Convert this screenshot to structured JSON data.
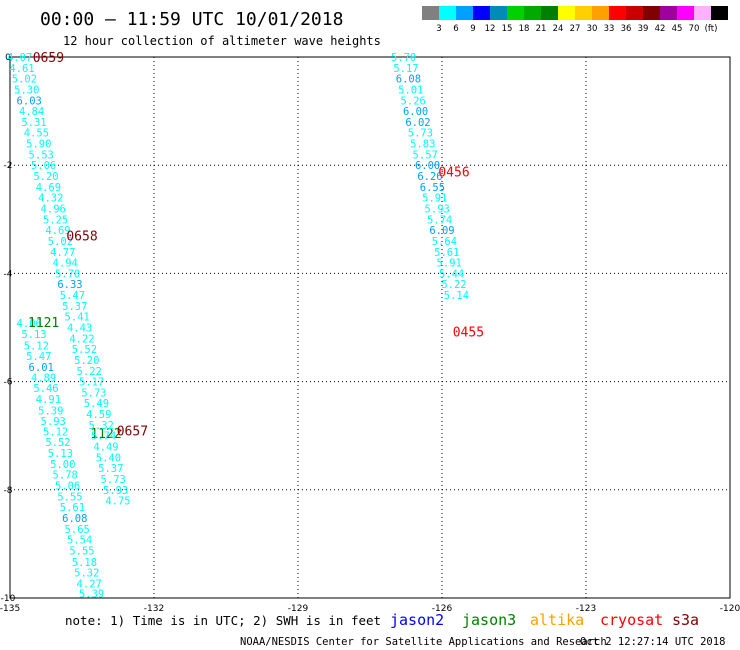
{
  "header": {
    "title": "00:00 – 11:59 UTC 10/01/2018",
    "subtitle": "12 hour collection of altimeter wave heights"
  },
  "legend": {
    "colors": [
      "#808080",
      "#00ffff",
      "#00a0ff",
      "#0000ff",
      "#008cb4",
      "#00d200",
      "#00aa00",
      "#008000",
      "#ffff00",
      "#ffd000",
      "#ffa000",
      "#ff0000",
      "#c80000",
      "#800000",
      "#a000a0",
      "#ff00ff",
      "#ffb0ff",
      "#000000"
    ],
    "labels": [
      "3",
      "6",
      "9",
      "12",
      "15",
      "18",
      "21",
      "24",
      "27",
      "30",
      "33",
      "36",
      "39",
      "42",
      "45",
      "70",
      "(ft)"
    ]
  },
  "chart_data": {
    "type": "scatter",
    "xlim": [
      -135,
      -120
    ],
    "ylim": [
      -10,
      0
    ],
    "x_ticks": [
      "-135",
      "-132",
      "-129",
      "-126",
      "-123",
      "-120"
    ],
    "y_ticks": [
      "0",
      "-2",
      "-4",
      "-6",
      "-8",
      "-10"
    ],
    "grid": true,
    "series": [
      {
        "name": "jason2",
        "color": "#0000ff",
        "points": []
      },
      {
        "name": "jason3",
        "color": "#008000",
        "times": [
          {
            "label": "1121",
            "x": -134.3,
            "y": -4.9
          },
          {
            "label": "1122",
            "x": -133.0,
            "y": -6.95
          }
        ],
        "points": [
          {
            "x": -134.6,
            "y": -4.92,
            "v": "4.06",
            "c": "#00ffff"
          },
          {
            "x": -134.5,
            "y": -5.12,
            "v": "5.13",
            "c": "#00ffff"
          },
          {
            "x": -134.45,
            "y": -5.33,
            "v": "5.12",
            "c": "#00ffff"
          },
          {
            "x": -134.4,
            "y": -5.53,
            "v": "5.47",
            "c": "#00ffff"
          },
          {
            "x": -134.35,
            "y": -5.73,
            "v": "6.01",
            "c": "#00a0ff"
          },
          {
            "x": -134.3,
            "y": -5.92,
            "v": "4.89",
            "c": "#00ffff"
          },
          {
            "x": -134.25,
            "y": -6.12,
            "v": "5.46",
            "c": "#00ffff"
          },
          {
            "x": -134.2,
            "y": -6.32,
            "v": "4.91",
            "c": "#00ffff"
          },
          {
            "x": -134.15,
            "y": -6.53,
            "v": "5.39",
            "c": "#00ffff"
          },
          {
            "x": -134.1,
            "y": -6.73,
            "v": "5.93",
            "c": "#00ffff"
          },
          {
            "x": -134.05,
            "y": -6.92,
            "v": "5.12",
            "c": "#00ffff"
          },
          {
            "x": -134.0,
            "y": -7.12,
            "v": "5.52",
            "c": "#00ffff"
          },
          {
            "x": -133.95,
            "y": -7.32,
            "v": "5.13",
            "c": "#00ffff"
          },
          {
            "x": -133.9,
            "y": -7.52,
            "v": "5.00",
            "c": "#00ffff"
          },
          {
            "x": -133.85,
            "y": -7.72,
            "v": "5.78",
            "c": "#00ffff"
          },
          {
            "x": -133.8,
            "y": -7.92,
            "v": "5.06",
            "c": "#00ffff"
          },
          {
            "x": -133.75,
            "y": -8.12,
            "v": "5.55",
            "c": "#00ffff"
          },
          {
            "x": -133.7,
            "y": -8.32,
            "v": "5.61",
            "c": "#00ffff"
          },
          {
            "x": -133.65,
            "y": -8.52,
            "v": "6.08",
            "c": "#00a0ff"
          },
          {
            "x": -133.6,
            "y": -8.72,
            "v": "5.65",
            "c": "#00ffff"
          },
          {
            "x": -133.55,
            "y": -8.92,
            "v": "5.54",
            "c": "#00ffff"
          },
          {
            "x": -133.5,
            "y": -9.12,
            "v": "5.55",
            "c": "#00ffff"
          },
          {
            "x": -133.45,
            "y": -9.33,
            "v": "5.18",
            "c": "#00ffff"
          },
          {
            "x": -133.4,
            "y": -9.53,
            "v": "5.32",
            "c": "#00ffff"
          },
          {
            "x": -133.35,
            "y": -9.73,
            "v": "4.27",
            "c": "#00ffff"
          },
          {
            "x": -133.3,
            "y": -9.92,
            "v": "5.39",
            "c": "#00ffff"
          }
        ]
      },
      {
        "name": "altika",
        "color": "#ffa000",
        "points": []
      },
      {
        "name": "cryosat",
        "color": "#ff0000",
        "times": [
          {
            "label": "0456",
            "x": -125.75,
            "y": -2.12
          },
          {
            "label": "0455",
            "x": -125.45,
            "y": -5.07
          }
        ],
        "points": [
          {
            "x": -126.8,
            "y": 0.0,
            "v": "5.70",
            "c": "#00ffff"
          },
          {
            "x": -126.75,
            "y": -0.2,
            "v": "5.17",
            "c": "#00ffff"
          },
          {
            "x": -126.7,
            "y": -0.4,
            "v": "6.08",
            "c": "#00a0ff"
          },
          {
            "x": -126.65,
            "y": -0.6,
            "v": "5.01",
            "c": "#00ffff"
          },
          {
            "x": -126.6,
            "y": -0.8,
            "v": "5.26",
            "c": "#00ffff"
          },
          {
            "x": -126.55,
            "y": -1.0,
            "v": "6.00",
            "c": "#00a0ff"
          },
          {
            "x": -126.5,
            "y": -1.2,
            "v": "6.02",
            "c": "#00a0ff"
          },
          {
            "x": -126.45,
            "y": -1.4,
            "v": "5.73",
            "c": "#00ffff"
          },
          {
            "x": -126.4,
            "y": -1.6,
            "v": "5.83",
            "c": "#00ffff"
          },
          {
            "x": -126.35,
            "y": -1.8,
            "v": "5.57",
            "c": "#00ffff"
          },
          {
            "x": -126.3,
            "y": -2.0,
            "v": "6.00",
            "c": "#00a0ff"
          },
          {
            "x": -126.25,
            "y": -2.2,
            "v": "6.26",
            "c": "#00a0ff"
          },
          {
            "x": -126.2,
            "y": -2.4,
            "v": "6.55",
            "c": "#00a0ff"
          },
          {
            "x": -126.15,
            "y": -2.6,
            "v": "5.91",
            "c": "#00ffff"
          },
          {
            "x": -126.1,
            "y": -2.8,
            "v": "5.93",
            "c": "#00ffff"
          },
          {
            "x": -126.05,
            "y": -3.0,
            "v": "5.74",
            "c": "#00ffff"
          },
          {
            "x": -126.0,
            "y": -3.2,
            "v": "6.09",
            "c": "#00a0ff"
          },
          {
            "x": -125.95,
            "y": -3.4,
            "v": "5.64",
            "c": "#00ffff"
          },
          {
            "x": -125.9,
            "y": -3.6,
            "v": "5.61",
            "c": "#00ffff"
          },
          {
            "x": -125.85,
            "y": -3.8,
            "v": "5.91",
            "c": "#00ffff"
          },
          {
            "x": -125.8,
            "y": -4.0,
            "v": "5.44",
            "c": "#00ffff"
          },
          {
            "x": -125.75,
            "y": -4.2,
            "v": "5.22",
            "c": "#00ffff"
          },
          {
            "x": -125.7,
            "y": -4.4,
            "v": "5.14",
            "c": "#00ffff"
          }
        ]
      },
      {
        "name": "s3a",
        "color": "#800000",
        "times": [
          {
            "label": "0659",
            "x": -134.2,
            "y": 0.0
          },
          {
            "label": "0658",
            "x": -133.5,
            "y": -3.3
          },
          {
            "label": "0657",
            "x": -132.45,
            "y": -6.9
          }
        ],
        "points": [
          {
            "x": -134.8,
            "y": 0.0,
            "v": "4.07",
            "c": "#00ffff"
          },
          {
            "x": -134.75,
            "y": -0.2,
            "v": "4.61",
            "c": "#00ffff"
          },
          {
            "x": -134.7,
            "y": -0.4,
            "v": "5.02",
            "c": "#00ffff"
          },
          {
            "x": -134.65,
            "y": -0.6,
            "v": "5.30",
            "c": "#00ffff"
          },
          {
            "x": -134.6,
            "y": -0.8,
            "v": "6.03",
            "c": "#00a0ff"
          },
          {
            "x": -134.55,
            "y": -1.0,
            "v": "4.84",
            "c": "#00ffff"
          },
          {
            "x": -134.5,
            "y": -1.2,
            "v": "5.31",
            "c": "#00ffff"
          },
          {
            "x": -134.45,
            "y": -1.4,
            "v": "4.55",
            "c": "#00ffff"
          },
          {
            "x": -134.4,
            "y": -1.6,
            "v": "5.90",
            "c": "#00ffff"
          },
          {
            "x": -134.35,
            "y": -1.8,
            "v": "5.53",
            "c": "#00ffff"
          },
          {
            "x": -134.3,
            "y": -2.0,
            "v": "5.06",
            "c": "#00ffff"
          },
          {
            "x": -134.25,
            "y": -2.2,
            "v": "5.20",
            "c": "#00ffff"
          },
          {
            "x": -134.2,
            "y": -2.4,
            "v": "4.69",
            "c": "#00ffff"
          },
          {
            "x": -134.15,
            "y": -2.6,
            "v": "4.32",
            "c": "#00ffff"
          },
          {
            "x": -134.1,
            "y": -2.8,
            "v": "4.96",
            "c": "#00ffff"
          },
          {
            "x": -134.05,
            "y": -3.0,
            "v": "5.25",
            "c": "#00ffff"
          },
          {
            "x": -134.0,
            "y": -3.2,
            "v": "4.69",
            "c": "#00ffff"
          },
          {
            "x": -133.95,
            "y": -3.4,
            "v": "5.02",
            "c": "#00ffff"
          },
          {
            "x": -133.9,
            "y": -3.6,
            "v": "4.77",
            "c": "#00ffff"
          },
          {
            "x": -133.85,
            "y": -3.8,
            "v": "4.94",
            "c": "#00ffff"
          },
          {
            "x": -133.8,
            "y": -4.0,
            "v": "5.70",
            "c": "#00ffff"
          },
          {
            "x": -133.75,
            "y": -4.2,
            "v": "6.33",
            "c": "#00a0ff"
          },
          {
            "x": -133.7,
            "y": -4.4,
            "v": "5.47",
            "c": "#00ffff"
          },
          {
            "x": -133.65,
            "y": -4.6,
            "v": "5.37",
            "c": "#00ffff"
          },
          {
            "x": -133.6,
            "y": -4.8,
            "v": "5.41",
            "c": "#00ffff"
          },
          {
            "x": -133.55,
            "y": -5.0,
            "v": "4.43",
            "c": "#00ffff"
          },
          {
            "x": -133.5,
            "y": -5.2,
            "v": "4.22",
            "c": "#00ffff"
          },
          {
            "x": -133.45,
            "y": -5.4,
            "v": "5.52",
            "c": "#00ffff"
          },
          {
            "x": -133.4,
            "y": -5.6,
            "v": "5.20",
            "c": "#00ffff"
          },
          {
            "x": -133.35,
            "y": -5.8,
            "v": "5.22",
            "c": "#00ffff"
          },
          {
            "x": -133.3,
            "y": -6.0,
            "v": "5.17",
            "c": "#00ffff"
          },
          {
            "x": -133.25,
            "y": -6.2,
            "v": "5.73",
            "c": "#00ffff"
          },
          {
            "x": -133.2,
            "y": -6.4,
            "v": "5.49",
            "c": "#00ffff"
          },
          {
            "x": -133.15,
            "y": -6.6,
            "v": "4.59",
            "c": "#00ffff"
          },
          {
            "x": -133.1,
            "y": -6.8,
            "v": "5.32",
            "c": "#00ffff"
          },
          {
            "x": -133.05,
            "y": -7.0,
            "v": "5.74",
            "c": "#00ffff"
          },
          {
            "x": -133.0,
            "y": -7.2,
            "v": "4.49",
            "c": "#00ffff"
          },
          {
            "x": -132.95,
            "y": -7.4,
            "v": "5.40",
            "c": "#00ffff"
          },
          {
            "x": -132.9,
            "y": -7.6,
            "v": "5.37",
            "c": "#00ffff"
          },
          {
            "x": -132.85,
            "y": -7.8,
            "v": "5.73",
            "c": "#00ffff"
          },
          {
            "x": -132.8,
            "y": -8.0,
            "v": "5.93",
            "c": "#00ffff"
          },
          {
            "x": -132.75,
            "y": -8.2,
            "v": "4.75",
            "c": "#00ffff"
          }
        ]
      }
    ]
  },
  "footer": {
    "note": "note: 1) Time is in UTC; 2) SWH is in feet",
    "satellites": [
      {
        "name": "jason2",
        "color": "#0000ff"
      },
      {
        "name": "jason3",
        "color": "#008000"
      },
      {
        "name": "altika",
        "color": "#ffa000"
      },
      {
        "name": "cryosat",
        "color": "#ff0000"
      },
      {
        "name": "s3a",
        "color": "#800000"
      }
    ],
    "credit": "NOAA/NESDIS Center for Satellite Applications and Research",
    "timestamp": "Oct  2 12:27:14 UTC 2018"
  }
}
